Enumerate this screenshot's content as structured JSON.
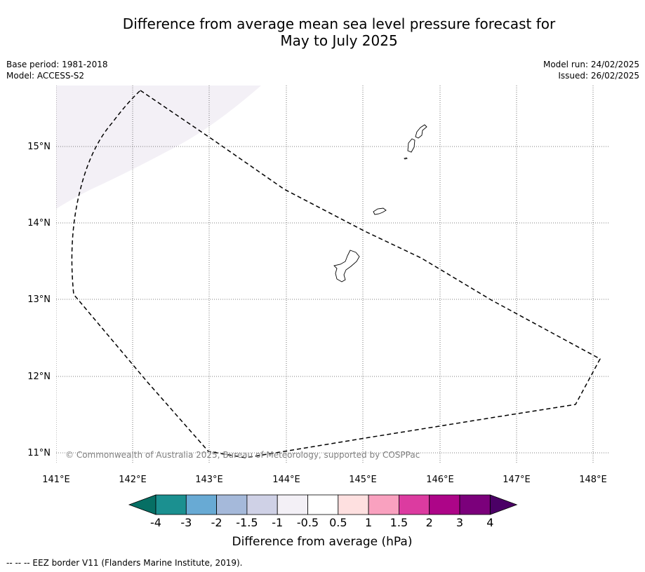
{
  "title_line1": "Difference from average mean sea level pressure forecast for",
  "title_line2": "May to July 2025",
  "meta": {
    "base_period": "Base period: 1981-2018",
    "model": "Model: ACCESS-S2",
    "model_run": "Model run: 24/02/2025",
    "issued": "Issued: 26/02/2025"
  },
  "map": {
    "lon_ticks": [
      "141°E",
      "142°E",
      "143°E",
      "144°E",
      "145°E",
      "146°E",
      "147°E",
      "148°E"
    ],
    "lat_ticks": [
      "15°N",
      "14°N",
      "13°N",
      "12°N",
      "11°N"
    ],
    "copyright": "© Commonwealth of Australia 2025, Bureau of Meteorology, supported by COSPPac",
    "anomaly_region_value": "-1 to -0.5"
  },
  "colorbar": {
    "title": "Difference from average (hPa)",
    "ticks": [
      "-4",
      "-3",
      "-2",
      "-1.5",
      "-1",
      "-0.5",
      "0.5",
      "1",
      "1.5",
      "2",
      "3",
      "4"
    ],
    "colors": [
      "#1b9090",
      "#68aad4",
      "#a5b9da",
      "#cfd1e6",
      "#f3f0f6",
      "#ffffff",
      "#fee0e0",
      "#f9a1bf",
      "#dc3ba0",
      "#ad0588",
      "#7b007b"
    ],
    "under_color": "#066f64",
    "over_color": "#4b0066"
  },
  "footnote": "--  --  -- EEZ border V11 (Flanders Marine Institute, 2019)."
}
